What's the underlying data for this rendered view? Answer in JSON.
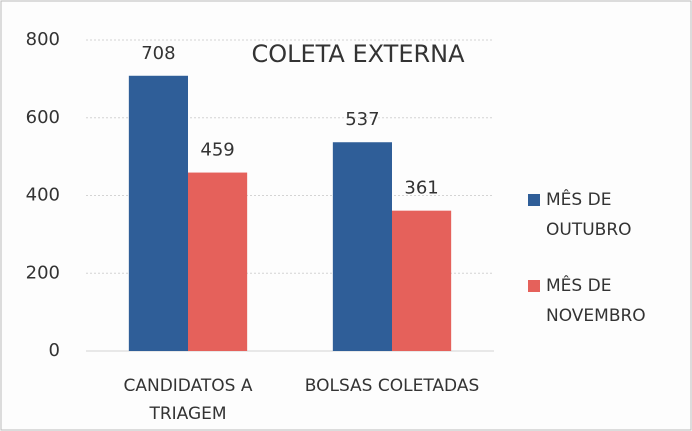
{
  "chart_data": {
    "type": "bar",
    "title": "COLETA EXTERNA",
    "categories": [
      "CANDIDATOS A TRIAGEM",
      "BOLSAS COLETADAS"
    ],
    "series": [
      {
        "name": "MÊS DE OUTUBRO",
        "color": "#2f5e98",
        "values": [
          708,
          537
        ]
      },
      {
        "name": "MÊS DE NOVEMBRO",
        "color": "#e5615b",
        "values": [
          459,
          361
        ]
      }
    ],
    "ylim": [
      0,
      800
    ],
    "yticks": [
      0,
      200,
      400,
      600,
      800
    ],
    "grid": true,
    "legend": "right"
  }
}
